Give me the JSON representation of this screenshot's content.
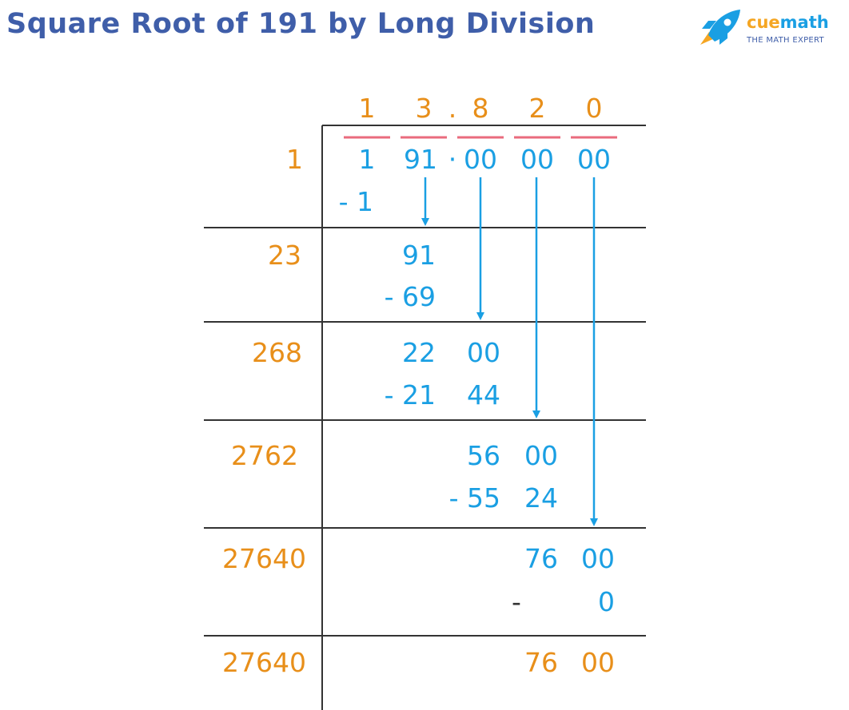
{
  "title": "Square Root of 191 by Long Division",
  "logo": {
    "name": "cuemath",
    "name_part1": "cue",
    "name_part2": "math",
    "tagline": "THE MATH EXPERT"
  },
  "colors": {
    "title": "#3f5ea9",
    "orange": "#e88f1a",
    "blue": "#1a9fe3",
    "pair_bar": "#ea6b7d",
    "line": "#333333",
    "logo_orange": "#f5a623",
    "logo_blue": "#1a9fe3"
  },
  "quotient": [
    "1",
    "3",
    ".",
    "8",
    "2",
    "0"
  ],
  "dividend": [
    "1",
    "91",
    "·",
    "00",
    "00",
    "00"
  ],
  "steps": [
    {
      "divisor": "1",
      "subtract": "- 1"
    },
    {
      "divisor": "23",
      "value": "91",
      "subtract": "- 69"
    },
    {
      "divisor": "268",
      "value_a": "22",
      "value_b": "00",
      "subtract_a": "- 21",
      "subtract_b": "44"
    },
    {
      "divisor": "2762",
      "value_a": "56",
      "value_b": "00",
      "subtract_a": "- 55",
      "subtract_b": "24"
    },
    {
      "divisor": "27640",
      "value_a": "76",
      "value_b": "00",
      "subtract_sign": "-",
      "subtract_b": "0"
    },
    {
      "divisor": "27640",
      "value_a": "76",
      "value_b": "00"
    }
  ]
}
